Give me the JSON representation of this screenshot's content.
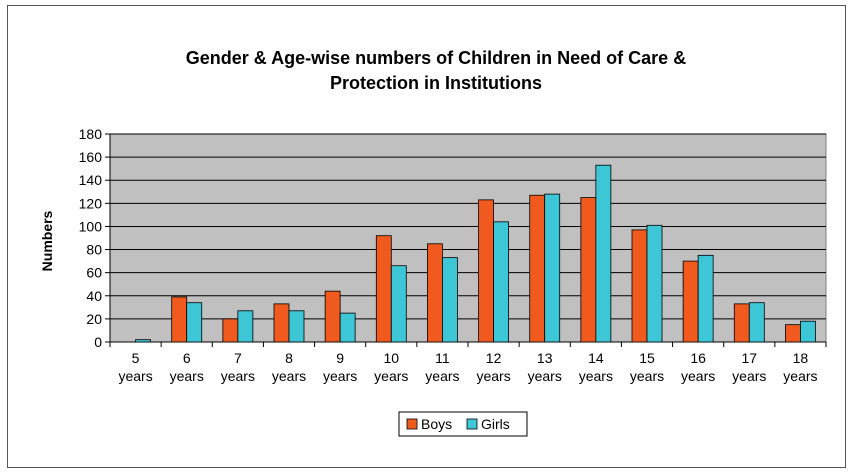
{
  "colors": {
    "boys": "#f05a1e",
    "girls": "#3cc6d6",
    "plot_background": "#c0c0c0",
    "gridline": "#000000"
  },
  "chart_data": {
    "type": "bar",
    "title": [
      "Gender & Age-wise numbers of Children in Need of Care &",
      "Protection in Institutions"
    ],
    "ylabel": "Numbers",
    "xlabel": "",
    "categories": [
      [
        "5",
        "years"
      ],
      [
        "6",
        "years"
      ],
      [
        "7",
        "years"
      ],
      [
        "8",
        "years"
      ],
      [
        "9",
        "years"
      ],
      [
        "10",
        "years"
      ],
      [
        "11",
        "years"
      ],
      [
        "12",
        "years"
      ],
      [
        "13",
        "years"
      ],
      [
        "14",
        "years"
      ],
      [
        "15",
        "years"
      ],
      [
        "16",
        "years"
      ],
      [
        "17",
        "years"
      ],
      [
        "18",
        "years"
      ]
    ],
    "series": [
      {
        "name": "Boys",
        "values": [
          0,
          39,
          20,
          33,
          44,
          92,
          85,
          123,
          127,
          125,
          97,
          70,
          33,
          15
        ]
      },
      {
        "name": "Girls",
        "values": [
          2,
          34,
          27,
          27,
          25,
          66,
          73,
          104,
          128,
          153,
          101,
          75,
          34,
          18
        ]
      }
    ],
    "ylim": [
      0,
      180
    ],
    "yticks": [
      "0",
      "20",
      "40",
      "60",
      "80",
      "100",
      "120",
      "140",
      "160",
      "180"
    ],
    "grid": true,
    "legend_position": "bottom"
  }
}
